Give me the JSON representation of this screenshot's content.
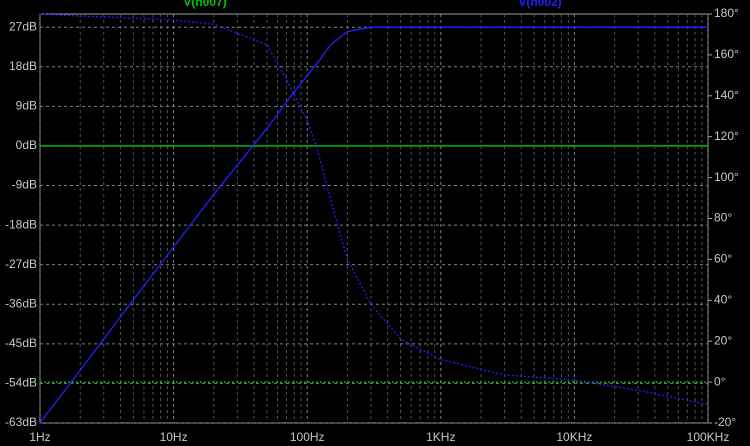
{
  "chart_data": {
    "type": "bode",
    "xlog": true,
    "grid": true,
    "x": [
      1,
      2,
      5,
      10,
      20,
      50,
      70,
      100,
      120,
      150,
      200,
      300,
      500,
      1000,
      3000,
      10000,
      30000,
      100000
    ],
    "xlim": [
      1,
      100000
    ],
    "xticks": [
      {
        "value": 1,
        "label": "1Hz"
      },
      {
        "value": 10,
        "label": "10Hz"
      },
      {
        "value": 100,
        "label": "100Hz"
      },
      {
        "value": 1000,
        "label": "1KHz"
      },
      {
        "value": 10000,
        "label": "10KHz"
      },
      {
        "value": 100000,
        "label": "100KHz"
      }
    ],
    "ylim": [
      -63,
      30
    ],
    "yticks": [
      {
        "value": 27,
        "label": "27dB"
      },
      {
        "value": 18,
        "label": "18dB"
      },
      {
        "value": 9,
        "label": "9dB"
      },
      {
        "value": 0,
        "label": "0dB"
      },
      {
        "value": -9,
        "label": "-9dB"
      },
      {
        "value": -18,
        "label": "-18dB"
      },
      {
        "value": -27,
        "label": "-27dB"
      },
      {
        "value": -36,
        "label": "-36dB"
      },
      {
        "value": -45,
        "label": "-45dB"
      },
      {
        "value": -54,
        "label": "-54dB"
      },
      {
        "value": -63,
        "label": "-63dB"
      }
    ],
    "y2lim": [
      -20,
      180
    ],
    "y2ticks": [
      {
        "value": 180,
        "label": "180°"
      },
      {
        "value": 160,
        "label": "160°"
      },
      {
        "value": 140,
        "label": "140°"
      },
      {
        "value": 120,
        "label": "120°"
      },
      {
        "value": 100,
        "label": "100°"
      },
      {
        "value": 80,
        "label": "80°"
      },
      {
        "value": 60,
        "label": "60°"
      },
      {
        "value": 40,
        "label": "40°"
      },
      {
        "value": 20,
        "label": "20°"
      },
      {
        "value": 0,
        "label": "0°"
      },
      {
        "value": -20,
        "label": "-20°"
      }
    ],
    "series": [
      {
        "name": "V(n007)",
        "color": "#00c800",
        "values": [
          0,
          0,
          0,
          0,
          0,
          0,
          0,
          0,
          0,
          0,
          0,
          0,
          0,
          0,
          0,
          0,
          0,
          0
        ],
        "phase": [
          0,
          0,
          0,
          0,
          0,
          0,
          0,
          0,
          0,
          0,
          0,
          0,
          0,
          0,
          0,
          0,
          0,
          0
        ]
      },
      {
        "name": "V(n002)",
        "color": "#2020ff",
        "values": [
          -63,
          -51,
          -35,
          -23,
          -11,
          4,
          10,
          16,
          19,
          23,
          26,
          27,
          27,
          27,
          27,
          27,
          27,
          27
        ],
        "phase": [
          180,
          179,
          178,
          177,
          175,
          165,
          148,
          128,
          113,
          89,
          60,
          38,
          21,
          11,
          3.5,
          1,
          -4,
          -11
        ]
      }
    ]
  }
}
